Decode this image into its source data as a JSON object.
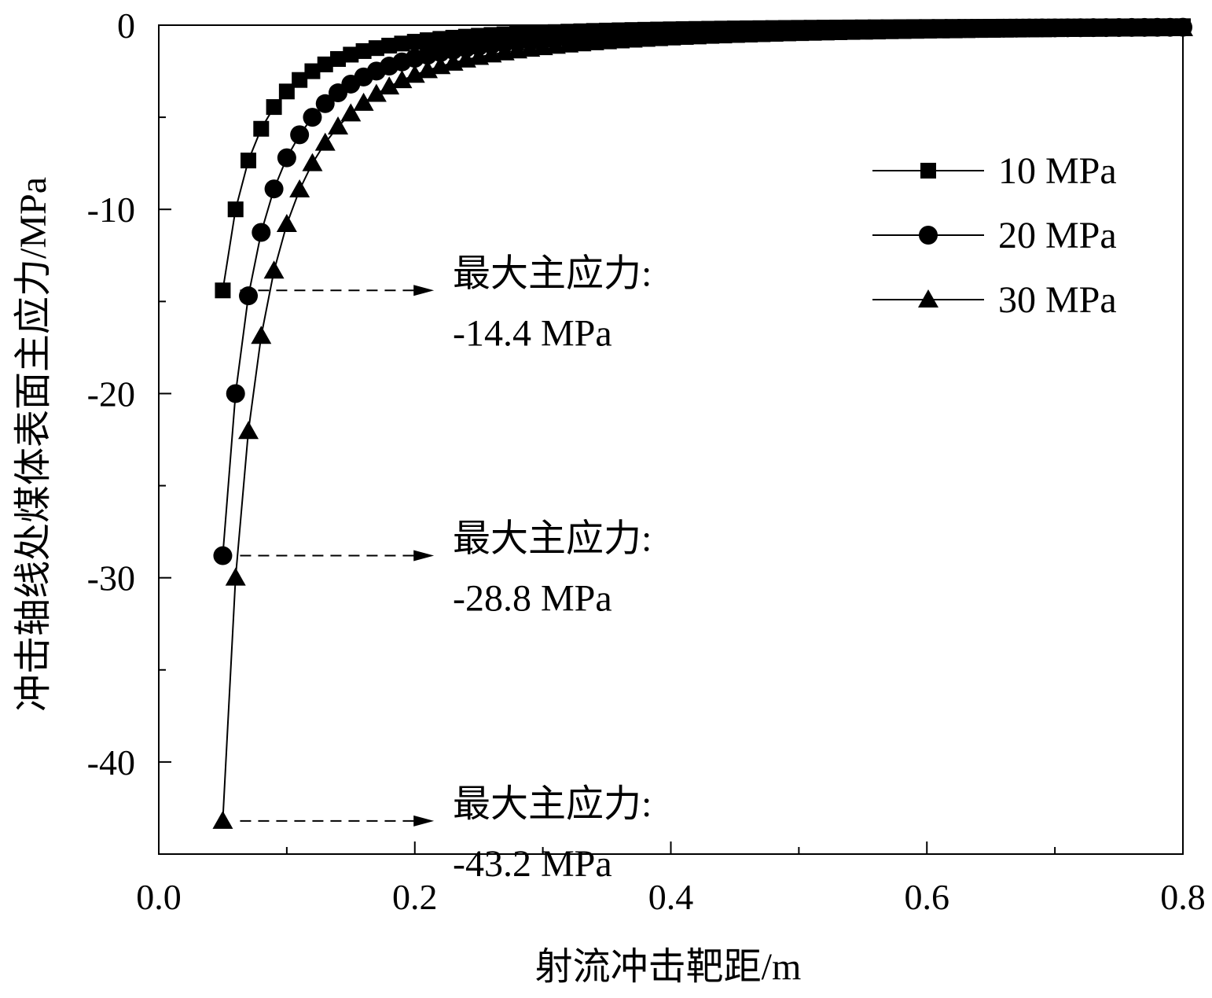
{
  "chart_data": {
    "type": "line",
    "xlabel": "射流冲击靶距/m",
    "ylabel": "冲击轴线处煤体表面主应力/MPa",
    "xlim": [
      0,
      0.8
    ],
    "ylim": [
      -45,
      0
    ],
    "x_ticks": [
      {
        "value": 0,
        "label": "0.0"
      },
      {
        "value": 0.2,
        "label": "0.2"
      },
      {
        "value": 0.4,
        "label": "0.4"
      },
      {
        "value": 0.6,
        "label": "0.6"
      },
      {
        "value": 0.8,
        "label": "0.8"
      }
    ],
    "y_ticks": [
      {
        "value": 0,
        "label": "0"
      },
      {
        "value": -10,
        "label": "-10"
      },
      {
        "value": -20,
        "label": "-20"
      },
      {
        "value": -30,
        "label": "-30"
      },
      {
        "value": -40,
        "label": "-40"
      }
    ],
    "grid": false,
    "legend_position": "top-right",
    "series": [
      {
        "name": "10 MPa",
        "marker": "square",
        "peak": -14.4,
        "coef": 0.036
      },
      {
        "name": "20 MPa",
        "marker": "circle",
        "peak": -28.8,
        "coef": 0.072
      },
      {
        "name": "30 MPa",
        "marker": "triangle",
        "peak": -43.2,
        "coef": 0.108
      }
    ],
    "annotations": [
      {
        "label": "最大主应力:",
        "value": "-14.4 MPa",
        "y": -14.4
      },
      {
        "label": "最大主应力:",
        "value": "-28.8 MPa",
        "y": -28.8
      },
      {
        "label": "最大主应力:",
        "value": "-43.2 MPa",
        "y": -43.2
      }
    ]
  }
}
